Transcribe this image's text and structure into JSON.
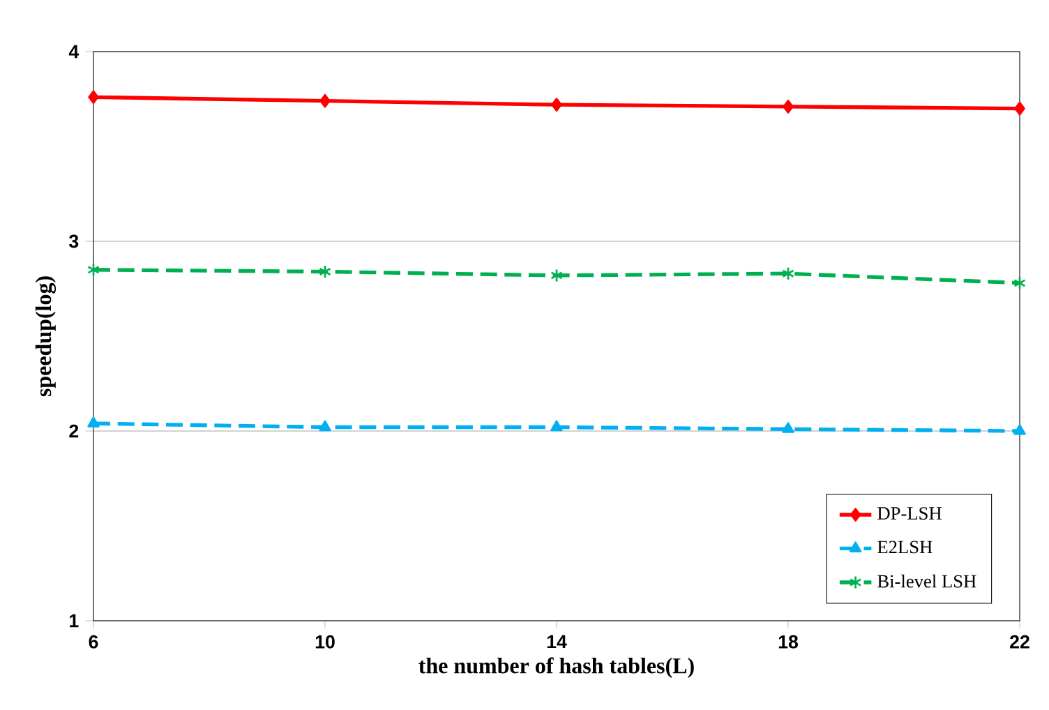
{
  "chart_data": {
    "type": "line",
    "xlabel": "the number of hash tables(L)",
    "ylabel": "speedup(log)",
    "x": [
      6,
      10,
      14,
      18,
      22
    ],
    "xlim": [
      6,
      22
    ],
    "xticks": [
      6,
      10,
      14,
      18,
      22
    ],
    "ylim": [
      1,
      4
    ],
    "yticks": [
      1,
      2,
      3,
      4
    ],
    "grid": "y",
    "legend": "bottom right",
    "series": [
      {
        "name": "DP-LSH",
        "color": "#ff0000",
        "marker": "diamond",
        "line_style": "solid",
        "values": [
          3.76,
          3.74,
          3.72,
          3.71,
          3.7
        ]
      },
      {
        "name": "E2LSH",
        "color": "#00b0f0",
        "marker": "triangle",
        "line_style": "dashed",
        "values": [
          2.04,
          2.02,
          2.02,
          2.01,
          2.0
        ]
      },
      {
        "name": "Bi-level LSH",
        "color": "#00b050",
        "marker": "cross",
        "line_style": "dashed",
        "values": [
          2.85,
          2.84,
          2.82,
          2.83,
          2.78
        ]
      }
    ]
  }
}
